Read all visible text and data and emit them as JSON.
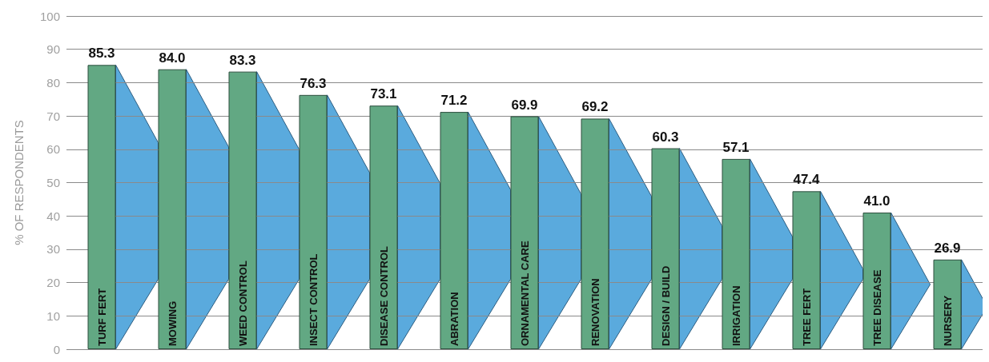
{
  "chart_data": {
    "type": "bar",
    "ylabel": "% OF RESPONDENTS",
    "categories": [
      "TURF FERT",
      "MOWING",
      "WEED CONTROL",
      "INSECT CONTROL",
      "DISEASE CONTROL",
      "ABRATION",
      "ORNAMENTAL CARE",
      "RENOVATION",
      "DESIGN / BUILD",
      "IRRIGATION",
      "TREE FERT",
      "TREE DISEASE",
      "NURSERY"
    ],
    "values": [
      85.3,
      84.0,
      83.3,
      76.3,
      73.1,
      71.2,
      69.9,
      69.2,
      60.3,
      57.1,
      47.4,
      41.0,
      26.9
    ],
    "value_labels": [
      "85.3",
      "84.0",
      "83.3",
      "76.3",
      "73.1",
      "71.2",
      "69.9",
      "69.2",
      "60.3",
      "57.1",
      "47.4",
      "41.0",
      "26.9"
    ],
    "color": "#62a883",
    "ylim": [
      0,
      100
    ],
    "yticks": [
      0,
      10,
      20,
      30,
      40,
      50,
      60,
      70,
      80,
      90,
      100
    ],
    "grid": "y"
  }
}
